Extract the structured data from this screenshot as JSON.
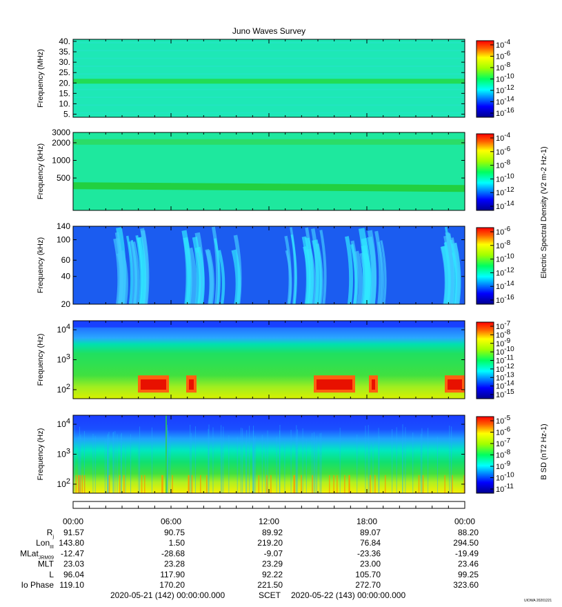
{
  "title": "Juno Waves Survey",
  "footer": {
    "start": "2020-05-21 (142) 00:00:00.000",
    "mid": "SCET",
    "end": "2020-05-22 (143) 00:00:00.000",
    "stamp": "UIOWA 20201221"
  },
  "colors": {
    "panel_border": "#000000",
    "background": "#ffffff"
  },
  "chart_data": [
    {
      "type": "heatmap",
      "ylabel": "Frequency (MHz)",
      "yticks": [
        "40.",
        "35.",
        "30.",
        "25.",
        "20.",
        "15.",
        "10.",
        "5."
      ],
      "ylim": [
        3.5,
        41
      ],
      "colorbar_ticks": [
        "10-4",
        "10-6",
        "10-8",
        "10-10",
        "10-12",
        "10-14",
        "10-16"
      ],
      "features": "uniform ~1e-12 background with a brighter band near 21 MHz"
    },
    {
      "type": "heatmap",
      "ylabel": "Frequency (kHz)",
      "yticks": [
        "3000",
        "2000",
        "1000",
        "500"
      ],
      "ylim": [
        140,
        3000
      ],
      "colorbar_ticks": [
        "10-4",
        "10-6",
        "10-8",
        "10-10",
        "10-12",
        "10-14"
      ],
      "features": "brighter bands near 2000 kHz and ~350 kHz"
    },
    {
      "type": "heatmap",
      "ylabel": "Frequency (kHz)",
      "yticks": [
        "140",
        "100",
        "60",
        "40",
        "20"
      ],
      "ylim": [
        20,
        140
      ],
      "colorbar_ticks": [
        "10-6",
        "10-8",
        "10-10",
        "10-12",
        "10-14",
        "10-16"
      ],
      "colorbar_label": "Electric Spectral Density (V2 m-2 Hz-1)",
      "features": "blue background with cyan/green emission bursts near 03-06, 08-10, 14-17 and 22-23 h"
    },
    {
      "type": "heatmap",
      "ylabel": "Frequency (Hz)",
      "yticks": [
        "104",
        "103",
        "102"
      ],
      "ylim": [
        50,
        20000
      ],
      "colorbar_ticks": [
        "10-7",
        "10-8",
        "10-9",
        "10-10",
        "10-11",
        "10-12",
        "10-13",
        "10-14",
        "10-15"
      ],
      "features": "green/yellow low frequencies, red bursts near 100-300 Hz at 04-07, 15-17 and 23-24 h"
    },
    {
      "type": "heatmap",
      "ylabel": "Frequency (Hz)",
      "yticks": [
        "104",
        "103",
        "102"
      ],
      "ylim": [
        50,
        20000
      ],
      "colorbar_ticks": [
        "10-5",
        "10-6",
        "10-7",
        "10-8",
        "10-9",
        "10-10",
        "10-11"
      ],
      "colorbar_label": "B SD (nT2 Hz-1)",
      "features": "blue above 10^4 Hz, green mid frequencies, yellow below 200 Hz"
    }
  ],
  "time_axis": {
    "ticks": [
      "00:00",
      "06:00",
      "12:00",
      "18:00",
      "00:00"
    ],
    "rows": [
      {
        "label": "Rj",
        "values": [
          "91.57",
          "90.75",
          "89.92",
          "89.07",
          "88.20"
        ]
      },
      {
        "label": "LonIII",
        "values": [
          "143.80",
          "1.50",
          "219.20",
          "76.84",
          "294.50"
        ]
      },
      {
        "label": "MLatJRM09",
        "values": [
          "-12.47",
          "-28.68",
          "-9.07",
          "-23.36",
          "-19.49"
        ]
      },
      {
        "label": "MLT",
        "values": [
          "23.03",
          "23.28",
          "23.29",
          "23.00",
          "23.46"
        ]
      },
      {
        "label": "L",
        "values": [
          "96.04",
          "117.90",
          "92.22",
          "105.70",
          "99.25"
        ]
      },
      {
        "label": "Io Phase",
        "values": [
          "119.10",
          "170.20",
          "221.50",
          "272.70",
          "323.60"
        ]
      }
    ]
  }
}
